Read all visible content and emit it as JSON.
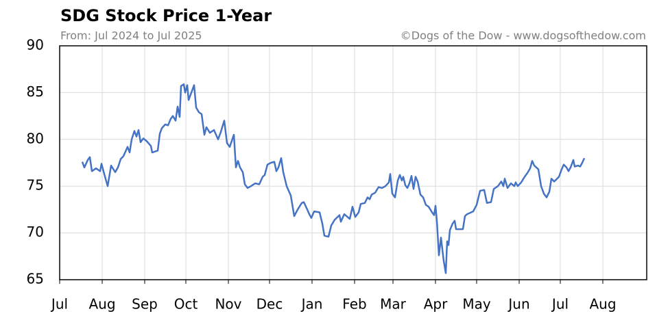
{
  "chart_data": {
    "type": "line",
    "title": "SDG Stock Price 1-Year",
    "subtitle": "From: Jul 2024 to Jul 2025",
    "credit": "©Dogs of the Dow - www.dogsofthedow.com",
    "color": "#4472c4",
    "grid": true,
    "xlim": [
      0,
      428
    ],
    "xticks": [
      {
        "value": 0,
        "label": "Jul"
      },
      {
        "value": 31,
        "label": "Aug"
      },
      {
        "value": 62,
        "label": "Sep"
      },
      {
        "value": 92,
        "label": "Oct"
      },
      {
        "value": 123,
        "label": "Nov"
      },
      {
        "value": 153,
        "label": "Dec"
      },
      {
        "value": 184,
        "label": "Jan"
      },
      {
        "value": 215,
        "label": "Feb"
      },
      {
        "value": 243,
        "label": "Mar"
      },
      {
        "value": 274,
        "label": "Apr"
      },
      {
        "value": 304,
        "label": "May"
      },
      {
        "value": 335,
        "label": "Jun"
      },
      {
        "value": 365,
        "label": "Jul"
      },
      {
        "value": 396,
        "label": "Aug"
      }
    ],
    "ylim": [
      65,
      90
    ],
    "yticks": [
      65,
      70,
      75,
      80,
      85,
      90
    ],
    "x": [
      16.5,
      18,
      20.5,
      22,
      23.5,
      26.5,
      29.5,
      30.5,
      32.5,
      35,
      37.5,
      40.5,
      42.5,
      44.5,
      46.5,
      49.5,
      51,
      52.5,
      54.5,
      56,
      57.5,
      59,
      61,
      63.5,
      66.5,
      67.5,
      71.5,
      73,
      74.5,
      77,
      79,
      81,
      82.5,
      84.5,
      86,
      87.5,
      88.5,
      90.5,
      91.5,
      93,
      94,
      96,
      98,
      99.5,
      101.5,
      103.5,
      105.5,
      107,
      109.5,
      112.5,
      115.5,
      117.5,
      120,
      122,
      124,
      127,
      128.5,
      130,
      131.5,
      133.5,
      135,
      137,
      139.5,
      142.5,
      145.5,
      148,
      149.5,
      151.5,
      154,
      156.5,
      158,
      159.5,
      161.5,
      163,
      165.5,
      168.5,
      171,
      173.5,
      176.5,
      178,
      180.5,
      182,
      183.5,
      185.5,
      189.5,
      191.5,
      193,
      196,
      198,
      200.5,
      204,
      205,
      207.5,
      211.5,
      213.5,
      215.5,
      218,
      219.5,
      222.5,
      224.5,
      226,
      227.5,
      230,
      232.5,
      235,
      237.5,
      240,
      241,
      242.5,
      244.5,
      246.5,
      248,
      249.5,
      250.5,
      252,
      253.5,
      255,
      256.5,
      258,
      259.5,
      261,
      263,
      265,
      267,
      269,
      271.5,
      273,
      274,
      275,
      276.5,
      278,
      280,
      281.5,
      282.5,
      283.5,
      284.5,
      286.5,
      288,
      289,
      292.5,
      294,
      295.5,
      297,
      301.5,
      304,
      306.5,
      309.5,
      311.5,
      314.5,
      316.5,
      319.5,
      322,
      323.5,
      324.5,
      326.5,
      329,
      331.5,
      332.5,
      334,
      336.5,
      339,
      341,
      343,
      344.5,
      346,
      349,
      351,
      353,
      355,
      357,
      358.5,
      360.5,
      362,
      364,
      366,
      367.5,
      369.5,
      371,
      372.5,
      374.5,
      375.5,
      378,
      379.5,
      381,
      382.5
    ],
    "values": [
      77.6,
      77.0,
      77.8,
      78.1,
      76.6,
      76.9,
      76.6,
      77.4,
      76.3,
      75.0,
      77.2,
      76.5,
      77.0,
      77.9,
      78.2,
      79.2,
      78.6,
      80.0,
      80.9,
      80.3,
      81.0,
      79.7,
      80.1,
      79.8,
      79.3,
      78.6,
      78.8,
      80.6,
      81.2,
      81.6,
      81.5,
      82.2,
      82.5,
      82.0,
      83.5,
      82.4,
      85.7,
      85.9,
      85.0,
      85.8,
      84.2,
      85.0,
      85.8,
      83.4,
      82.9,
      82.7,
      80.5,
      81.3,
      80.7,
      81.0,
      80.0,
      80.8,
      82.0,
      79.6,
      79.2,
      80.5,
      77.0,
      77.7,
      77.0,
      76.5,
      75.2,
      74.8,
      75.0,
      75.3,
      75.2,
      76.0,
      76.2,
      77.3,
      77.5,
      77.6,
      76.6,
      77.0,
      78.0,
      76.5,
      75.0,
      74.0,
      71.8,
      72.5,
      73.2,
      73.3,
      72.5,
      72.0,
      71.6,
      72.3,
      72.2,
      71.0,
      69.7,
      69.6,
      70.8,
      71.4,
      71.9,
      71.2,
      72.0,
      71.5,
      72.8,
      71.7,
      72.2,
      73.1,
      73.2,
      73.8,
      73.6,
      74.1,
      74.3,
      74.9,
      74.8,
      75.0,
      75.4,
      76.3,
      74.2,
      73.8,
      75.6,
      76.2,
      75.6,
      76.0,
      75.1,
      74.8,
      75.3,
      76.1,
      74.7,
      76.0,
      75.5,
      74.1,
      73.8,
      73.0,
      72.8,
      72.2,
      71.9,
      72.9,
      71.3,
      67.6,
      69.5,
      67.0,
      65.7,
      69.1,
      68.7,
      70.3,
      71.0,
      71.3,
      70.4,
      70.4,
      70.4,
      71.8,
      72.0,
      72.3,
      73.0,
      74.5,
      74.6,
      73.2,
      73.3,
      74.7,
      75.0,
      75.5,
      75.0,
      75.8,
      74.8,
      75.3,
      75.0,
      75.4,
      75.0,
      75.4,
      76.0,
      76.4,
      76.9,
      77.7,
      77.2,
      76.8,
      75.0,
      74.2,
      73.8,
      74.4,
      75.8,
      75.5,
      75.7,
      76.0,
      76.8,
      77.3,
      77.0,
      76.6,
      77.0,
      77.8,
      77.1,
      77.2,
      77.1,
      77.5,
      78.0
    ]
  }
}
